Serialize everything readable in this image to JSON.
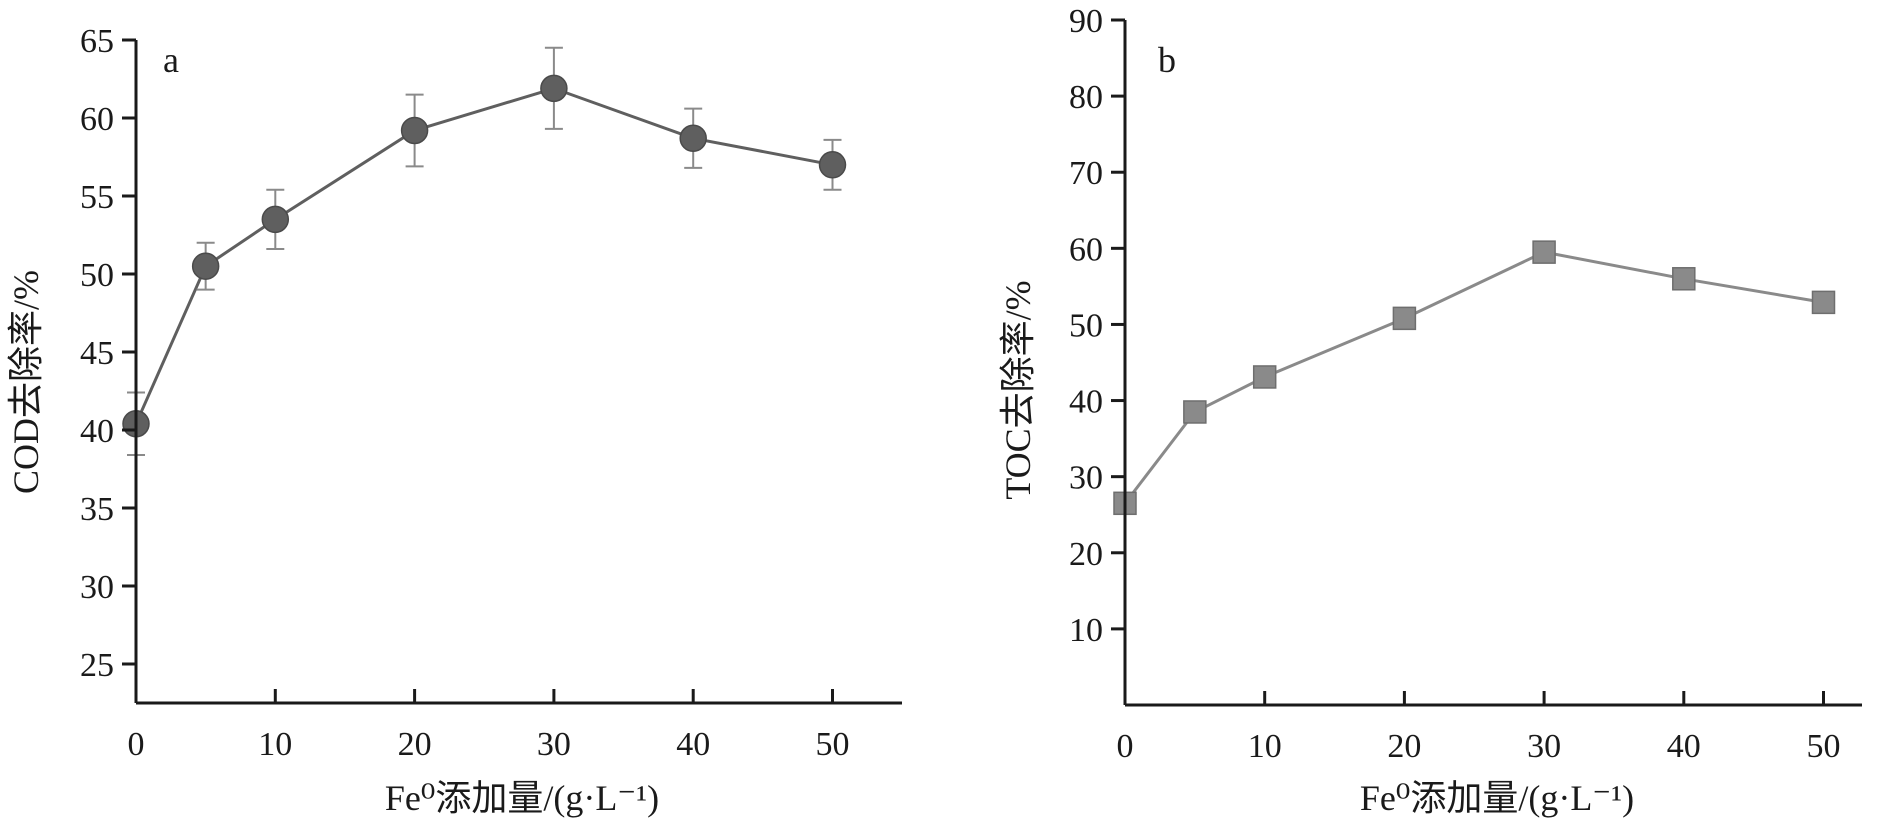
{
  "chart_data": [
    {
      "type": "line",
      "panel_label": "a",
      "xlabel": "Fe⁰添加量/(g·L⁻¹)",
      "ylabel": "COD去除率/%",
      "x": [
        0,
        5,
        10,
        20,
        30,
        40,
        50
      ],
      "xticks": [
        0,
        10,
        20,
        30,
        40,
        50
      ],
      "xlim": [
        0,
        55
      ],
      "ylim": [
        22.5,
        65
      ],
      "yticks": [
        25,
        30,
        35,
        40,
        45,
        50,
        55,
        60,
        65
      ],
      "grid": false,
      "series": [
        {
          "marker": "circle",
          "color": "#5f5f5f",
          "values": [
            40.4,
            50.5,
            53.5,
            59.2,
            61.9,
            58.7,
            57.0
          ],
          "error": [
            2.0,
            1.5,
            1.9,
            2.3,
            2.6,
            1.9,
            1.6
          ]
        }
      ]
    },
    {
      "type": "line",
      "panel_label": "b",
      "xlabel": "Fe⁰添加量/(g·L⁻¹)",
      "ylabel": "TOC去除率/%",
      "x": [
        0,
        5,
        10,
        20,
        30,
        40,
        50
      ],
      "xticks": [
        0,
        10,
        20,
        30,
        40,
        50
      ],
      "xlim": [
        0,
        53
      ],
      "ylim": [
        0,
        90
      ],
      "yticks": [
        10,
        20,
        30,
        40,
        50,
        60,
        70,
        80,
        90
      ],
      "grid": false,
      "series": [
        {
          "marker": "square",
          "color": "#8a8a8a",
          "values": [
            26.5,
            38.5,
            43.1,
            50.8,
            59.5,
            56.0,
            52.9
          ]
        }
      ]
    }
  ]
}
